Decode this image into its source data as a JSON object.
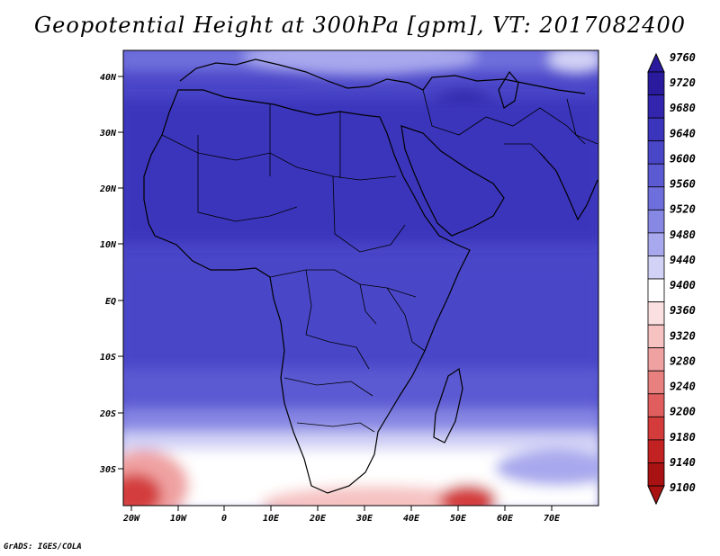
{
  "title": "Geopotential Height at 300hPa [gpm], VT: 2017082400",
  "footer": "GrADS: IGES/COLA",
  "lat_labels": [
    "40N",
    "30N",
    "20N",
    "10N",
    "EQ",
    "10S",
    "20S",
    "30S"
  ],
  "lon_labels": [
    "20W",
    "10W",
    "0",
    "10E",
    "20E",
    "30E",
    "40E",
    "50E",
    "60E",
    "70E"
  ],
  "colorbar": {
    "levels": [
      "9760",
      "9720",
      "9680",
      "9640",
      "9600",
      "9560",
      "9520",
      "9480",
      "9440",
      "9400",
      "9360",
      "9320",
      "9280",
      "9240",
      "9200",
      "9180",
      "9140",
      "9100"
    ],
    "colors": [
      "#2a1a9e",
      "#3326ae",
      "#3b34bc",
      "#4a46c8",
      "#5b5ad2",
      "#6e6edc",
      "#8787e4",
      "#a8a8ee",
      "#d2d2f6",
      "#ffffff",
      "#fbe0e0",
      "#f6c2c2",
      "#f0a2a2",
      "#e88080",
      "#e05e5e",
      "#d43c3c",
      "#c22222",
      "#a81212"
    ]
  },
  "field_colors": {
    "deep": "#3b34bc",
    "main": "#4a46c8",
    "mid": "#5b5ad2",
    "light": "#8787e4",
    "pale": "#d2d2f6",
    "white": "#ffffff",
    "pink": "#f6c2c2",
    "red": "#d43c3c",
    "dark_red": "#a81212"
  }
}
